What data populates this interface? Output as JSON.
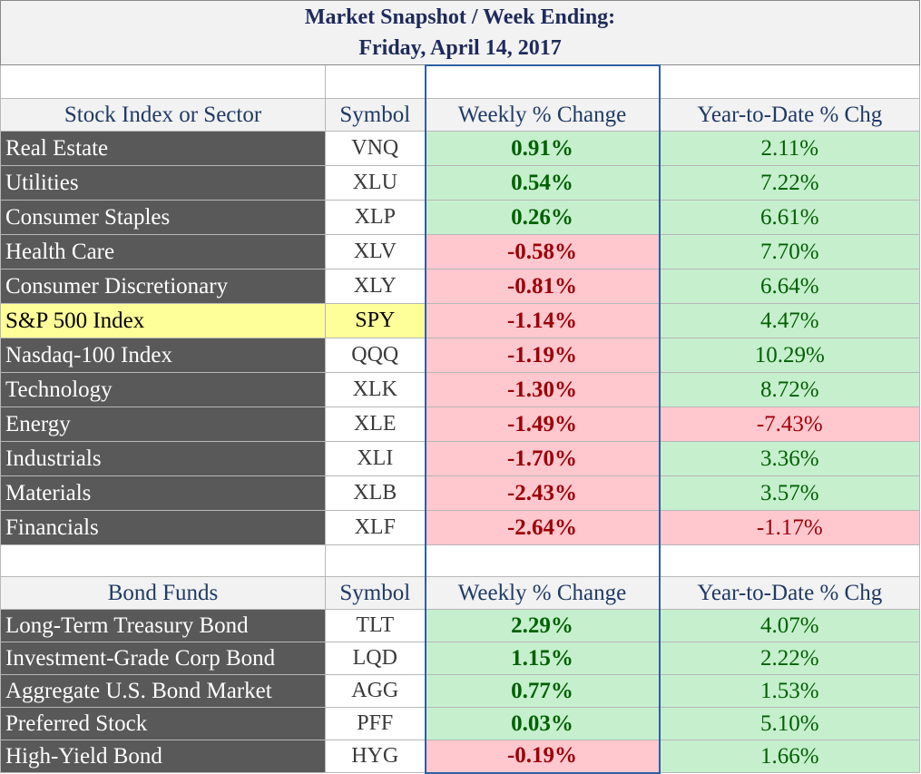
{
  "title": {
    "line1": "Market Snapshot / Week Ending:",
    "line2": "Friday, April 14, 2017"
  },
  "stocks": {
    "headers": {
      "name": "Stock Index or Sector",
      "symbol": "Symbol",
      "weekly": "Weekly % Change",
      "ytd": "Year-to-Date % Chg"
    },
    "rows": [
      {
        "name": "Real Estate",
        "symbol": "VNQ",
        "weekly": "0.91%",
        "ytd": "2.11%",
        "weekly_sign": "pos",
        "ytd_sign": "pos",
        "highlight": false
      },
      {
        "name": "Utilities",
        "symbol": "XLU",
        "weekly": "0.54%",
        "ytd": "7.22%",
        "weekly_sign": "pos",
        "ytd_sign": "pos",
        "highlight": false
      },
      {
        "name": "Consumer Staples",
        "symbol": "XLP",
        "weekly": "0.26%",
        "ytd": "6.61%",
        "weekly_sign": "pos",
        "ytd_sign": "pos",
        "highlight": false
      },
      {
        "name": "Health Care",
        "symbol": "XLV",
        "weekly": "-0.58%",
        "ytd": "7.70%",
        "weekly_sign": "neg",
        "ytd_sign": "pos",
        "highlight": false
      },
      {
        "name": "Consumer Discretionary",
        "symbol": "XLY",
        "weekly": "-0.81%",
        "ytd": "6.64%",
        "weekly_sign": "neg",
        "ytd_sign": "pos",
        "highlight": false
      },
      {
        "name": "S&P 500 Index",
        "symbol": "SPY",
        "weekly": "-1.14%",
        "ytd": "4.47%",
        "weekly_sign": "neg",
        "ytd_sign": "pos",
        "highlight": true
      },
      {
        "name": "Nasdaq-100 Index",
        "symbol": "QQQ",
        "weekly": "-1.19%",
        "ytd": "10.29%",
        "weekly_sign": "neg",
        "ytd_sign": "pos",
        "highlight": false
      },
      {
        "name": "Technology",
        "symbol": "XLK",
        "weekly": "-1.30%",
        "ytd": "8.72%",
        "weekly_sign": "neg",
        "ytd_sign": "pos",
        "highlight": false
      },
      {
        "name": "Energy",
        "symbol": "XLE",
        "weekly": "-1.49%",
        "ytd": "-7.43%",
        "weekly_sign": "neg",
        "ytd_sign": "neg",
        "highlight": false
      },
      {
        "name": "Industrials",
        "symbol": "XLI",
        "weekly": "-1.70%",
        "ytd": "3.36%",
        "weekly_sign": "neg",
        "ytd_sign": "pos",
        "highlight": false
      },
      {
        "name": "Materials",
        "symbol": "XLB",
        "weekly": "-2.43%",
        "ytd": "3.57%",
        "weekly_sign": "neg",
        "ytd_sign": "pos",
        "highlight": false
      },
      {
        "name": "Financials",
        "symbol": "XLF",
        "weekly": "-2.64%",
        "ytd": "-1.17%",
        "weekly_sign": "neg",
        "ytd_sign": "neg",
        "highlight": false
      }
    ]
  },
  "bonds": {
    "headers": {
      "name": "Bond Funds",
      "symbol": "Symbol",
      "weekly": "Weekly % Change",
      "ytd": "Year-to-Date % Chg"
    },
    "rows": [
      {
        "name": "Long-Term Treasury Bond",
        "symbol": "TLT",
        "weekly": "2.29%",
        "ytd": "4.07%",
        "weekly_sign": "pos",
        "ytd_sign": "pos",
        "highlight": false
      },
      {
        "name": "Investment-Grade Corp Bond",
        "symbol": "LQD",
        "weekly": "1.15%",
        "ytd": "2.22%",
        "weekly_sign": "pos",
        "ytd_sign": "pos",
        "highlight": false
      },
      {
        "name": "Aggregate U.S. Bond Market",
        "symbol": "AGG",
        "weekly": "0.77%",
        "ytd": "1.53%",
        "weekly_sign": "pos",
        "ytd_sign": "pos",
        "highlight": false
      },
      {
        "name": "Preferred Stock",
        "symbol": "PFF",
        "weekly": "0.03%",
        "ytd": "5.10%",
        "weekly_sign": "pos",
        "ytd_sign": "pos",
        "highlight": false
      },
      {
        "name": "High-Yield Bond",
        "symbol": "HYG",
        "weekly": "-0.19%",
        "ytd": "1.66%",
        "weekly_sign": "neg",
        "ytd_sign": "pos",
        "highlight": false
      }
    ]
  }
}
